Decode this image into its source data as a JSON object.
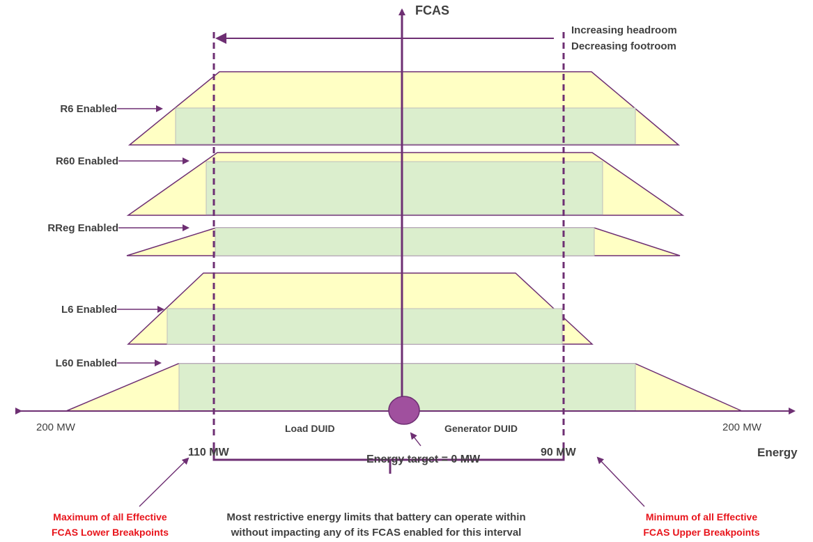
{
  "axes": {
    "y_title": "FCAS",
    "x_title": "Energy",
    "left_end": "200 MW",
    "right_end": "200 MW",
    "load_label": "Load DUID",
    "gen_label": "Generator DUID"
  },
  "direction_note": {
    "line1": "Increasing headroom",
    "line2": "Decreasing footroom"
  },
  "services": [
    {
      "label": "R6 Enabled"
    },
    {
      "label": "R60 Enabled"
    },
    {
      "label": "RReg Enabled"
    },
    {
      "label": "L6 Enabled"
    },
    {
      "label": "L60 Enabled"
    }
  ],
  "breakpoints": {
    "lower": "110 MW",
    "upper": "90 MW",
    "target": "Energy target = 0 MW"
  },
  "notes": {
    "lower_line1": "Maximum of all Effective",
    "lower_line2": "FCAS Lower Breakpoints",
    "middle_line1": "Most restrictive energy limits that battery can operate within",
    "middle_line2": "without impacting any of its FCAS enabled for this interval",
    "upper_line1": "Minimum of all Effective",
    "upper_line2": "FCAS Upper Breakpoints"
  },
  "colors": {
    "purple": "#6e2f73",
    "trapezium_fill": "#ffffc4",
    "enabled_fill": "#dbeecd",
    "target_dot": "#a0509e",
    "note_red": "#e8141b"
  }
}
